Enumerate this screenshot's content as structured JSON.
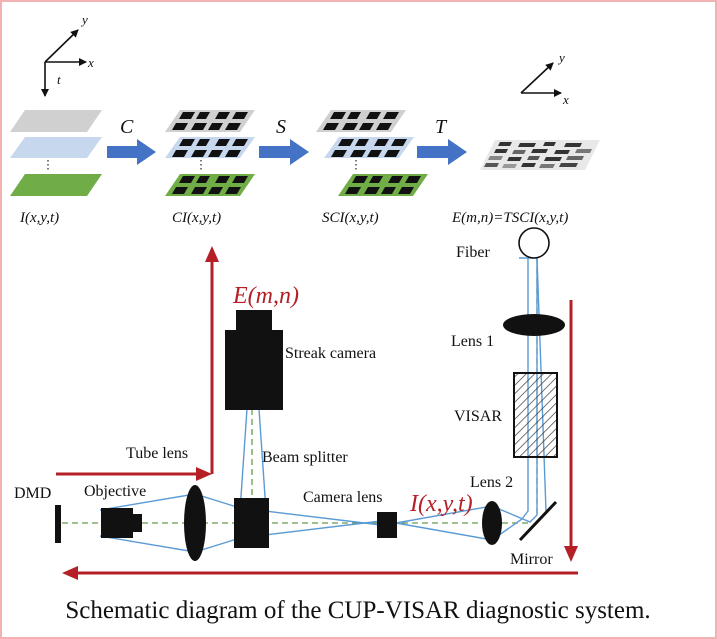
{
  "axes": {
    "top_left": {
      "x": "x",
      "y": "y",
      "t": "t"
    },
    "top_right": {
      "x": "x",
      "y": "y"
    }
  },
  "operators": {
    "c": "C",
    "s": "S",
    "t": "T"
  },
  "stage_labels": {
    "i": "I(x,y,t)",
    "ci": "CI(x,y,t)",
    "sci": "SCI(x,y,t)",
    "e": "E(m,n)=TSCI(x,y,t)"
  },
  "components": {
    "fiber": "Fiber",
    "lens1": "Lens 1",
    "visar": "VISAR",
    "lens2": "Lens 2",
    "mirror": "Mirror",
    "streak_camera": "Streak camera",
    "beam_splitter": "Beam splitter",
    "tube_lens": "Tube lens",
    "camera_lens": "Camera lens",
    "dmd": "DMD",
    "objective": "Objective"
  },
  "signals": {
    "e_mn": "E(m,n)",
    "i_xyt": "I(x,y,t)"
  },
  "caption": "Schematic diagram of the CUP-VISAR diagnostic system.",
  "colors": {
    "red_arrow": "#b42025",
    "blue_arrow": "#4472c4",
    "beam": "#5b9bd5",
    "axis_dash": "#6a9a4a",
    "plane_gray": "#d0d0d0",
    "plane_blue": "#c6d7ee",
    "plane_green": "#70ad47"
  }
}
